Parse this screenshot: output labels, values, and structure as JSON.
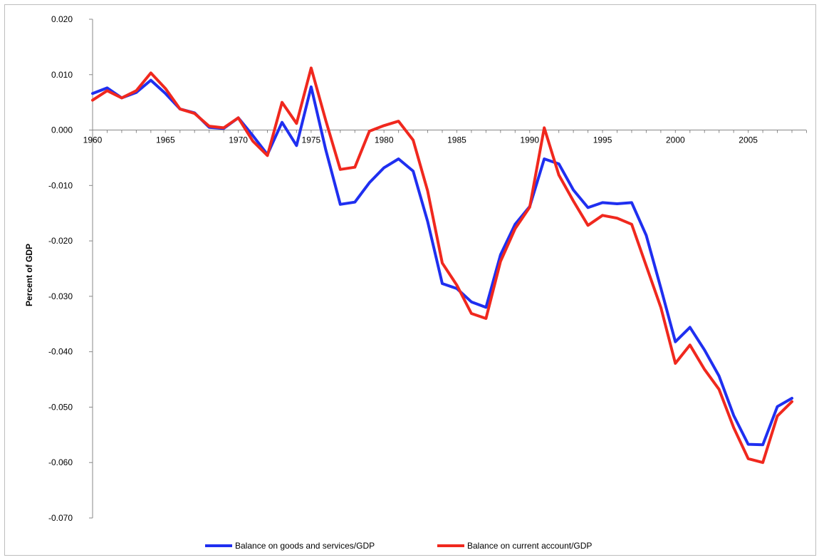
{
  "chart_data": {
    "type": "line",
    "title": "",
    "xlabel": "",
    "ylabel": "Percent of GDP",
    "xlim": [
      1960,
      2008
    ],
    "ylim": [
      -0.07,
      0.02
    ],
    "x_ticks": [
      "1960",
      "1965",
      "1970",
      "1975",
      "1980",
      "1985",
      "1990",
      "1995",
      "2000",
      "2005"
    ],
    "y_ticks": [
      "0.020",
      "0.010",
      "0.000",
      "-0.010",
      "-0.020",
      "-0.030",
      "-0.040",
      "-0.050",
      "-0.060",
      "-0.070"
    ],
    "grid": false,
    "legend_position": "bottom",
    "x": [
      1960,
      1961,
      1962,
      1963,
      1964,
      1965,
      1966,
      1967,
      1968,
      1969,
      1970,
      1971,
      1972,
      1973,
      1974,
      1975,
      1976,
      1977,
      1978,
      1979,
      1980,
      1981,
      1982,
      1983,
      1984,
      1985,
      1986,
      1987,
      1988,
      1989,
      1990,
      1991,
      1992,
      1993,
      1994,
      1995,
      1996,
      1997,
      1998,
      1999,
      2000,
      2001,
      2002,
      2003,
      2004,
      2005,
      2006,
      2007,
      2008
    ],
    "series": [
      {
        "name": "Balance on goods and services/GDP",
        "color": "#1f2ff0",
        "values": [
          0.0066,
          0.0076,
          0.0058,
          0.0068,
          0.009,
          0.0066,
          0.0038,
          0.0031,
          0.0005,
          0.0003,
          0.0022,
          -0.001,
          -0.0044,
          0.0014,
          -0.0028,
          0.0078,
          -0.0035,
          -0.0134,
          -0.013,
          -0.0095,
          -0.0068,
          -0.0052,
          -0.0074,
          -0.0165,
          -0.0277,
          -0.0286,
          -0.031,
          -0.032,
          -0.0225,
          -0.017,
          -0.0138,
          -0.0052,
          -0.0061,
          -0.0108,
          -0.014,
          -0.0131,
          -0.0133,
          -0.0131,
          -0.019,
          -0.0285,
          -0.0382,
          -0.0356,
          -0.0397,
          -0.0444,
          -0.0515,
          -0.0567,
          -0.0568,
          -0.0499,
          -0.0484
        ]
      },
      {
        "name": "Balance on current account/GDP",
        "color": "#f0281e",
        "values": [
          0.0054,
          0.0071,
          0.0058,
          0.0071,
          0.0103,
          0.0075,
          0.0038,
          0.003,
          0.0007,
          0.0004,
          0.0022,
          -0.002,
          -0.0046,
          0.005,
          0.0012,
          0.0112,
          0.0018,
          -0.0071,
          -0.0067,
          -0.0002,
          0.0008,
          0.0016,
          -0.0018,
          -0.011,
          -0.024,
          -0.028,
          -0.0331,
          -0.034,
          -0.0237,
          -0.0178,
          -0.0139,
          0.0004,
          -0.0081,
          -0.0128,
          -0.0172,
          -0.0154,
          -0.0159,
          -0.017,
          -0.0245,
          -0.032,
          -0.0421,
          -0.0388,
          -0.0432,
          -0.0468,
          -0.0537,
          -0.0593,
          -0.06,
          -0.0516,
          -0.049
        ]
      }
    ]
  }
}
